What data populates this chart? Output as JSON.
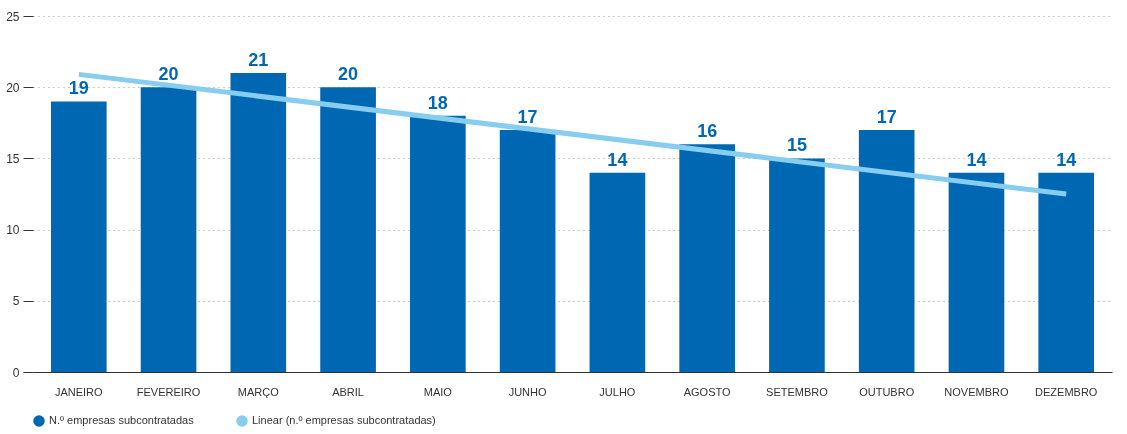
{
  "chart_data": {
    "type": "bar",
    "categories": [
      "JANEIRO",
      "FEVEREIRO",
      "MARÇO",
      "ABRIL",
      "MAIO",
      "JUNHO",
      "JULHO",
      "AGOSTO",
      "SETEMBRO",
      "OUTUBRO",
      "NOVEMBRO",
      "DEZEMBRO"
    ],
    "series": [
      {
        "name": "N.º empresas subcontratadas",
        "color": "#0068b3",
        "values": [
          19,
          20,
          21,
          20,
          18,
          17,
          14,
          16,
          15,
          17,
          14,
          14
        ],
        "value_labels": [
          "19",
          "20",
          "21",
          "20",
          "18",
          "17",
          "14",
          "16",
          "15",
          "17",
          "14",
          "14"
        ]
      },
      {
        "name": "Linear (n.º empresas subcontratadas)",
        "type": "line",
        "color": "#87cdef",
        "x": [
          "JANEIRO",
          "DEZEMBRO"
        ],
        "values": [
          20.9,
          12.5
        ]
      }
    ],
    "ylim": [
      0,
      25
    ],
    "yticks": [
      0,
      5,
      10,
      15,
      20,
      25
    ],
    "grid": "y",
    "legend": "bottom left"
  }
}
